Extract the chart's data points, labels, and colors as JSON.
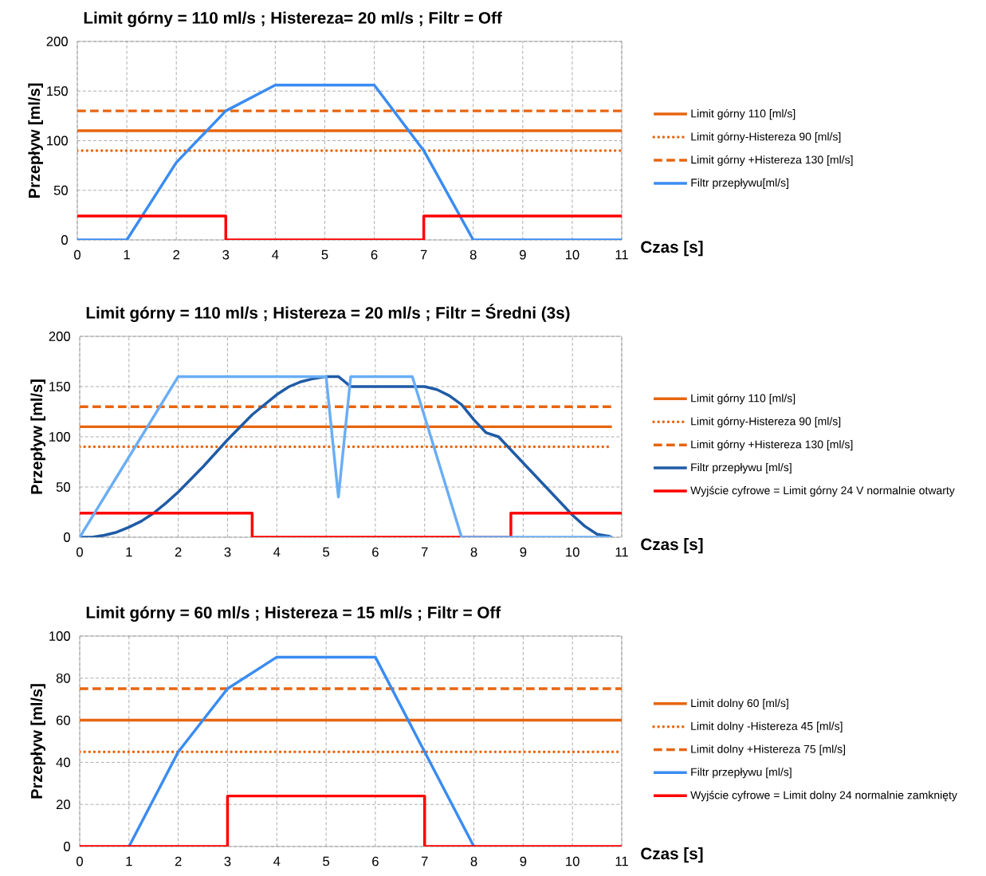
{
  "chart_data": [
    {
      "type": "line",
      "title": "Limit górny = 110 ml/s ; Histereza= 20 ml/s ; Filtr = Off",
      "xlabel": "Czas [s]",
      "ylabel": "Przepływ [ml/s]",
      "xlim": [
        0,
        11
      ],
      "ylim": [
        0,
        200
      ],
      "xticks": [
        0,
        1,
        2,
        3,
        4,
        5,
        6,
        7,
        8,
        9,
        10,
        11
      ],
      "yticks": [
        0,
        50,
        100,
        150,
        200
      ],
      "grid": true,
      "legend": "right",
      "series": [
        {
          "name": "Limit górny 110 [ml/s]",
          "color": "#e8650f",
          "line_style": "solid",
          "x": [
            0,
            11
          ],
          "values": [
            110,
            110
          ]
        },
        {
          "name": "Limit górny-Histereza 90 [ml/s]",
          "color": "#e8650f",
          "line_style": "dotted",
          "x": [
            0,
            11
          ],
          "values": [
            90,
            90
          ]
        },
        {
          "name": "Limit górny +Histereza 130 [ml/s]",
          "color": "#e8650f",
          "line_style": "dashed",
          "x": [
            0,
            11
          ],
          "values": [
            130,
            130
          ]
        },
        {
          "name": "Filtr przepływu[ml/s]",
          "color": "#3a8cf2",
          "line_style": "solid",
          "x": [
            0,
            1,
            2,
            3,
            4,
            6,
            7,
            8,
            11
          ],
          "values": [
            0,
            0,
            78,
            130,
            156,
            156,
            90,
            0,
            0
          ]
        },
        {
          "color": "#ff0000",
          "line_style": "solid",
          "x": [
            0,
            3,
            3,
            7,
            7,
            11
          ],
          "values": [
            24,
            24,
            0,
            0,
            24,
            24
          ]
        }
      ]
    },
    {
      "type": "line",
      "title": "Limit górny = 110 ml/s ; Histereza = 20 ml/s ; Filtr = Średni (3s)",
      "xlabel": "Czas [s]",
      "ylabel": "Przepływ [ml/s]",
      "xlim": [
        0,
        11
      ],
      "ylim": [
        0,
        200
      ],
      "xticks": [
        0,
        1,
        2,
        3,
        4,
        5,
        6,
        7,
        8,
        9,
        10,
        11
      ],
      "yticks": [
        0,
        50,
        100,
        150,
        200
      ],
      "grid": true,
      "legend": "right",
      "series": [
        {
          "name": "Limit górny 110 [ml/s]",
          "color": "#e8650f",
          "line_style": "solid",
          "x": [
            0,
            10.8
          ],
          "values": [
            110,
            110
          ]
        },
        {
          "name": "Limit górny-Histereza 90 [ml/s]",
          "color": "#e8650f",
          "line_style": "dotted",
          "x": [
            0,
            10.8
          ],
          "values": [
            90,
            90
          ]
        },
        {
          "name": "Limit górny +Histereza 130 [ml/s]",
          "color": "#e8650f",
          "line_style": "dashed",
          "x": [
            0,
            10.8
          ],
          "values": [
            130,
            130
          ]
        },
        {
          "name": "Filtr przepływu [ml/s]",
          "color": "#1f5ba6",
          "line_style": "solid",
          "x": [
            0,
            0.25,
            0.5,
            0.75,
            1,
            1.25,
            1.5,
            1.75,
            2,
            2.5,
            3,
            3.5,
            4,
            4.25,
            4.5,
            4.75,
            5,
            5.25,
            5.5,
            6,
            6.5,
            7,
            7.25,
            7.5,
            7.75,
            8,
            8.25,
            8.5,
            9,
            9.5,
            10,
            10.25,
            10.5,
            10.75,
            10.8
          ],
          "values": [
            0,
            0,
            2,
            5,
            10,
            16,
            24,
            34,
            45,
            70,
            97,
            122,
            142,
            150,
            155,
            158,
            160,
            160,
            150,
            150,
            150,
            150,
            147,
            141,
            132,
            117,
            104,
            100,
            74,
            48,
            22,
            11,
            3,
            1,
            0
          ]
        },
        {
          "name": "Wyjście cyfrowe = Limit górny 24 V normalnie otwarty",
          "color": "#ff0000",
          "line_style": "solid",
          "x": [
            0,
            3.5,
            3.5,
            8.75,
            8.75,
            11
          ],
          "values": [
            24,
            24,
            0,
            0,
            24,
            24
          ]
        },
        {
          "color": "#6aaef5",
          "line_style": "solid",
          "x": [
            0,
            2,
            5,
            5.25,
            5.5,
            6.75,
            7.75,
            10.8
          ],
          "values": [
            0,
            160,
            160,
            40,
            160,
            160,
            0,
            0
          ]
        }
      ]
    },
    {
      "type": "line",
      "title": "Limit górny = 60 ml/s ; Histereza = 15 ml/s ; Filtr = Off",
      "xlabel": "Czas [s]",
      "ylabel": "Przepływ [ml/s]",
      "xlim": [
        0,
        11
      ],
      "ylim": [
        0,
        100
      ],
      "xticks": [
        0,
        1,
        2,
        3,
        4,
        5,
        6,
        7,
        8,
        9,
        10,
        11
      ],
      "yticks": [
        0,
        20,
        40,
        60,
        80,
        100
      ],
      "grid": true,
      "legend": "right",
      "series": [
        {
          "name": "Limit dolny 60 [ml/s]",
          "color": "#e8650f",
          "line_style": "solid",
          "x": [
            0,
            11
          ],
          "values": [
            60,
            60
          ]
        },
        {
          "name": "Limit dolny -Histereza 45 [ml/s]",
          "color": "#e8650f",
          "line_style": "dotted",
          "x": [
            0,
            11
          ],
          "values": [
            45,
            45
          ]
        },
        {
          "name": "Limit dolny +Histereza 75 [ml/s]",
          "color": "#e8650f",
          "line_style": "dashed",
          "x": [
            0,
            11
          ],
          "values": [
            75,
            75
          ]
        },
        {
          "name": "Filtr przepływu [ml/s]",
          "color": "#3a8cf2",
          "line_style": "solid",
          "x": [
            1,
            2,
            3,
            4,
            6,
            7,
            8
          ],
          "values": [
            0,
            45,
            75,
            90,
            90,
            45,
            0
          ]
        },
        {
          "name": "Wyjście cyfrowe = Limit dolny 24 normalnie zamknięty",
          "color": "#ff0000",
          "line_style": "solid",
          "x": [
            0,
            3,
            3,
            7,
            7,
            11
          ],
          "values": [
            0,
            0,
            24,
            24,
            0,
            0
          ]
        }
      ]
    }
  ]
}
